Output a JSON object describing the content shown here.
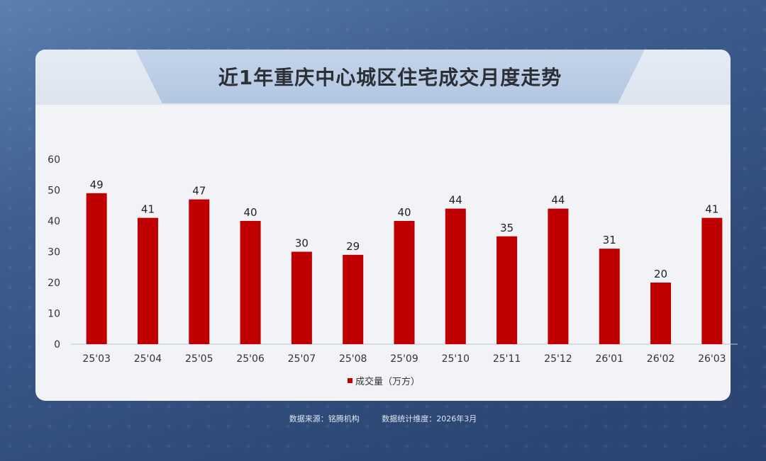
{
  "title": "近1年重庆中心城区住宅成交月度走势",
  "footer": {
    "source": "数据来源：铭腾机构",
    "dimension": "数据统计维度：2026年3月"
  },
  "colors": {
    "bar": "#c00000",
    "axis_text": "#333333"
  },
  "chart_data": {
    "type": "bar",
    "title": "近1年重庆中心城区住宅成交月度走势",
    "categories": [
      "25'03",
      "25'04",
      "25'05",
      "25'06",
      "25'07",
      "25'08",
      "25'09",
      "25'10",
      "25'11",
      "25'12",
      "26'01",
      "26'02",
      "26'03"
    ],
    "series": [
      {
        "name": "成交量（万方）",
        "values": [
          49,
          41,
          47,
          40,
          30,
          29,
          40,
          44,
          35,
          44,
          31,
          20,
          41
        ]
      }
    ],
    "ylim": [
      0,
      60
    ],
    "yticks": [
      0,
      10,
      20,
      30,
      40,
      50,
      60
    ],
    "grid": false,
    "legend": "bottom",
    "data_labels": true
  }
}
